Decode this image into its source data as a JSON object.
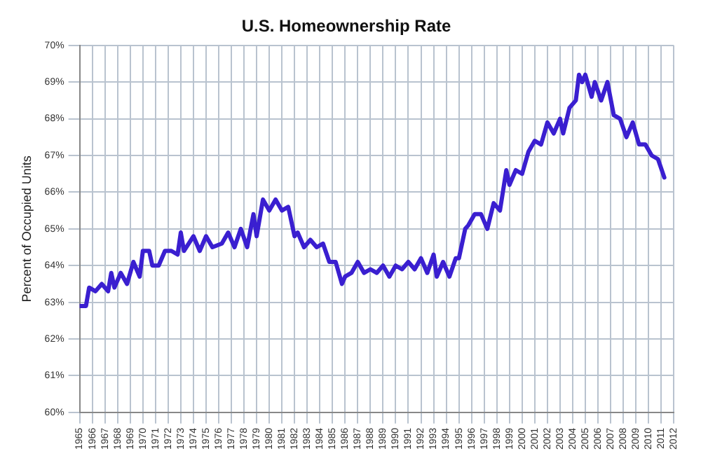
{
  "chart_data": {
    "type": "line",
    "title": "U.S. Homeownership Rate",
    "ylabel": "Percent of Occupied Units",
    "x": [
      1965.0,
      1965.5,
      1965.75,
      1966.25,
      1966.75,
      1967.25,
      1967.5,
      1967.75,
      1968.25,
      1968.75,
      1969.25,
      1969.75,
      1970.0,
      1970.5,
      1970.75,
      1971.25,
      1971.75,
      1972.25,
      1972.75,
      1973.0,
      1973.25,
      1974.0,
      1974.5,
      1975.0,
      1975.5,
      1976.25,
      1976.75,
      1977.25,
      1977.75,
      1978.25,
      1978.75,
      1979.0,
      1979.5,
      1980.0,
      1980.5,
      1981.0,
      1981.5,
      1982.0,
      1982.25,
      1982.75,
      1983.25,
      1983.75,
      1984.25,
      1984.75,
      1985.25,
      1985.75,
      1986.0,
      1986.5,
      1987.0,
      1987.5,
      1988.0,
      1988.5,
      1989.0,
      1989.5,
      1990.0,
      1990.5,
      1991.0,
      1991.5,
      1992.0,
      1992.5,
      1993.0,
      1993.25,
      1993.75,
      1994.25,
      1994.75,
      1995.0,
      1995.5,
      1995.75,
      1996.25,
      1996.75,
      1997.25,
      1997.75,
      1998.25,
      1998.75,
      1999.0,
      1999.5,
      2000.0,
      2000.5,
      2001.0,
      2001.5,
      2002.0,
      2002.5,
      2003.0,
      2003.25,
      2003.75,
      2004.25,
      2004.5,
      2004.75,
      2005.0,
      2005.5,
      2005.75,
      2006.25,
      2006.75,
      2007.25,
      2007.75,
      2008.25,
      2008.75,
      2009.25,
      2009.75,
      2010.25,
      2010.75,
      2011.25
    ],
    "series": [
      {
        "color": "#3a1fd0",
        "values": [
          62.9,
          62.9,
          63.4,
          63.3,
          63.5,
          63.3,
          63.8,
          63.4,
          63.8,
          63.5,
          64.1,
          63.7,
          64.4,
          64.4,
          64.0,
          64.0,
          64.4,
          64.4,
          64.3,
          64.9,
          64.4,
          64.8,
          64.4,
          64.8,
          64.5,
          64.6,
          64.9,
          64.5,
          65.0,
          64.5,
          65.4,
          64.8,
          65.8,
          65.5,
          65.8,
          65.5,
          65.6,
          64.8,
          64.9,
          64.5,
          64.7,
          64.5,
          64.6,
          64.1,
          64.1,
          63.5,
          63.7,
          63.8,
          64.1,
          63.8,
          63.9,
          63.8,
          64.0,
          63.7,
          64.0,
          63.9,
          64.1,
          63.9,
          64.2,
          63.8,
          64.3,
          63.7,
          64.1,
          63.7,
          64.2,
          64.2,
          65.0,
          65.1,
          65.4,
          65.4,
          65.0,
          65.7,
          65.5,
          66.6,
          66.2,
          66.6,
          66.5,
          67.1,
          67.4,
          67.3,
          67.9,
          67.6,
          68.0,
          67.6,
          68.3,
          68.5,
          69.2,
          69.0,
          69.2,
          68.6,
          69.0,
          68.5,
          69.0,
          68.1,
          68.0,
          67.5,
          67.9,
          67.3,
          67.3,
          67.0,
          66.9,
          66.4
        ]
      }
    ],
    "xlim": [
      1965,
      2012
    ],
    "xticks": [
      1965,
      1966,
      1967,
      1968,
      1969,
      1970,
      1971,
      1972,
      1973,
      1974,
      1975,
      1976,
      1977,
      1978,
      1979,
      1980,
      1981,
      1982,
      1983,
      1984,
      1985,
      1986,
      1987,
      1988,
      1989,
      1990,
      1991,
      1992,
      1993,
      1994,
      1995,
      1996,
      1997,
      1998,
      1999,
      2000,
      2001,
      2002,
      2003,
      2004,
      2005,
      2006,
      2007,
      2008,
      2009,
      2010,
      2011,
      2012
    ],
    "ylim": [
      60,
      70
    ],
    "yticks": [
      {
        "value": 60,
        "label": "60%"
      },
      {
        "value": 61,
        "label": "61%"
      },
      {
        "value": 62,
        "label": "62%"
      },
      {
        "value": 63,
        "label": "63%"
      },
      {
        "value": 64,
        "label": "64%"
      },
      {
        "value": 65,
        "label": "65%"
      },
      {
        "value": 66,
        "label": "66%"
      },
      {
        "value": 67,
        "label": "67%"
      },
      {
        "value": 68,
        "label": "68%"
      },
      {
        "value": 69,
        "label": "69%"
      },
      {
        "value": 70,
        "label": "70%"
      }
    ],
    "grid": true,
    "legend": false,
    "marker": "none",
    "line_style": "solid"
  }
}
